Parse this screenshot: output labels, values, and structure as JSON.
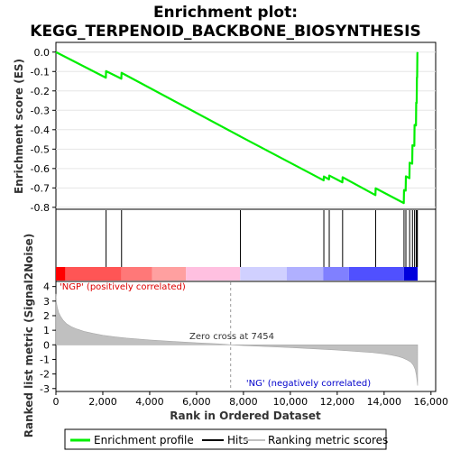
{
  "chart_data": {
    "type": "line",
    "title_line1": "Enrichment plot:",
    "title_line2": "KEGG_TERPENOID_BACKBONE_BIOSYNTHESIS",
    "xlabel": "Rank in Ordered Dataset",
    "ylabel_top": "Enrichment score (ES)",
    "ylabel_bottom": "Ranked list metric (Signal2Noise)",
    "x_range": [
      0,
      15500
    ],
    "x_ticks": [
      0,
      2000,
      4000,
      6000,
      8000,
      10000,
      12000,
      14000,
      16000
    ],
    "x_tick_labels": [
      "0",
      "2,000",
      "4,000",
      "6,000",
      "8,000",
      "10,000",
      "12,000",
      "14,000",
      "16,000"
    ],
    "es_ylim": [
      -0.8,
      0.0
    ],
    "es_ticks": [
      0.0,
      -0.1,
      -0.2,
      -0.3,
      -0.4,
      -0.5,
      -0.6,
      -0.7,
      -0.8
    ],
    "es_tick_labels": [
      "0.0",
      "-0.1",
      "-0.2",
      "-0.3",
      "-0.4",
      "-0.5",
      "-0.6",
      "-0.7",
      "-0.8"
    ],
    "metric_ylim": [
      -3,
      4
    ],
    "metric_ticks": [
      4,
      3,
      2,
      1,
      0,
      -1,
      -2,
      -3
    ],
    "metric_tick_labels": [
      "4",
      "3",
      "2",
      "1",
      "0",
      "-1",
      "-2",
      "-3"
    ],
    "enrichment_profile": {
      "name": "Enrichment profile",
      "color": "#00ee00",
      "x": [
        0,
        2130,
        2140,
        2790,
        2800,
        7860,
        7870,
        11420,
        11430,
        11650,
        11660,
        12220,
        12230,
        13630,
        13640,
        14840,
        14850,
        14920,
        14930,
        15080,
        15090,
        15200,
        15210,
        15290,
        15300,
        15360,
        15370,
        15390,
        15400,
        15410,
        15420,
        15430
      ],
      "y": [
        0.0,
        -0.132,
        -0.098,
        -0.137,
        -0.107,
        -0.434,
        -0.435,
        -0.661,
        -0.641,
        -0.656,
        -0.636,
        -0.671,
        -0.645,
        -0.737,
        -0.702,
        -0.778,
        -0.711,
        -0.714,
        -0.64,
        -0.65,
        -0.57,
        -0.575,
        -0.48,
        -0.483,
        -0.375,
        -0.378,
        -0.26,
        -0.262,
        -0.13,
        -0.131,
        -0.005,
        0.0
      ]
    },
    "hits": {
      "name": "Hits",
      "color": "#000000",
      "x": [
        2140,
        2800,
        7870,
        11430,
        11660,
        12230,
        13640,
        14850,
        14930,
        15090,
        15210,
        15300,
        15370,
        15400,
        15420
      ]
    },
    "ranking_metric": {
      "name": "Ranking metric scores",
      "color": "#c0c0c0",
      "x": [
        0,
        20,
        60,
        120,
        200,
        300,
        450,
        650,
        900,
        1200,
        1600,
        2000,
        2500,
        3000,
        4000,
        5000,
        6000,
        7000,
        7454,
        8000,
        9000,
        10000,
        11000,
        12000,
        13000,
        13500,
        14000,
        14300,
        14600,
        14800,
        15000,
        15150,
        15250,
        15330,
        15380,
        15410,
        15430
      ],
      "y": [
        3.5,
        2.9,
        2.55,
        2.2,
        1.95,
        1.7,
        1.45,
        1.25,
        1.08,
        0.92,
        0.78,
        0.66,
        0.55,
        0.46,
        0.33,
        0.23,
        0.14,
        0.06,
        0.0,
        -0.05,
        -0.12,
        -0.19,
        -0.27,
        -0.36,
        -0.47,
        -0.53,
        -0.62,
        -0.7,
        -0.8,
        -0.9,
        -1.05,
        -1.2,
        -1.4,
        -1.7,
        -2.1,
        -2.5,
        -2.8
      ]
    },
    "gradient_bar": {
      "x_edges": [
        0,
        400,
        2800,
        4100,
        5550,
        7860,
        9850,
        11400,
        12500,
        14850,
        15430
      ],
      "colors": [
        "#ff0000",
        "#ff5555",
        "#ff7878",
        "#ffa0a0",
        "#ffc0e0",
        "#d0d0ff",
        "#b0b0ff",
        "#8080ff",
        "#5050ff",
        "#0000dd"
      ]
    },
    "annotations": {
      "positive": "'NGP' (positively correlated)",
      "positive_color": "#dd0000",
      "negative": "'NG' (negatively correlated)",
      "negative_color": "#0000cc",
      "zero_cross": "Zero cross at 7454",
      "zero_cross_x": 7454
    },
    "legend": {
      "placement": "bottom",
      "items": [
        {
          "label": "Enrichment profile",
          "color": "#00ee00"
        },
        {
          "label": "Hits",
          "color": "#000000"
        },
        {
          "label": "Ranking metric scores",
          "color": "#c0c0c0"
        }
      ]
    }
  }
}
